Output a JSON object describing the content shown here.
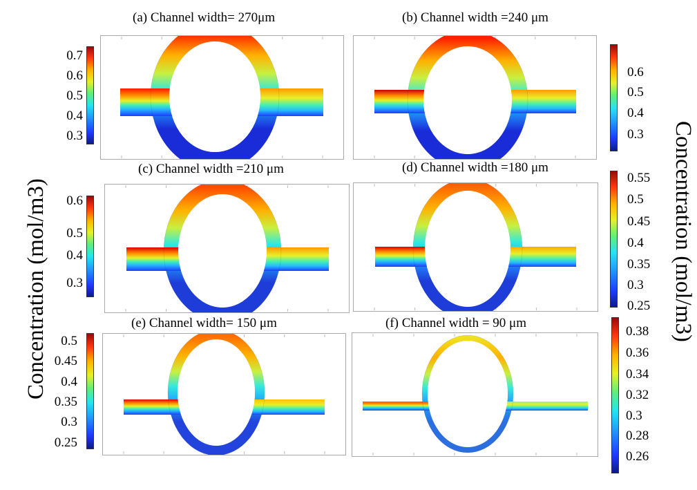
{
  "panels": [
    {
      "title": "(a) Channel width= 270μm",
      "cmin": 0.25,
      "cmax": 0.75,
      "ticks": [
        "0.7",
        "0.6",
        "0.5",
        "0.4",
        "0.3"
      ],
      "tick_values": [
        0.7,
        0.6,
        0.5,
        0.4,
        0.3
      ]
    },
    {
      "title": "(b) Channel width =240 μm",
      "cmin": 0.22,
      "cmax": 0.7,
      "ticks": [
        "0.6",
        "0.5",
        "0.4",
        "0.3"
      ],
      "tick_values": [
        0.6,
        0.5,
        0.4,
        0.3
      ]
    },
    {
      "title": "(c) Channel width =210 μm",
      "cmin": 0.25,
      "cmax": 0.62,
      "ticks": [
        "0.6",
        "0.5",
        "0.4",
        "0.3"
      ],
      "tick_values": [
        0.6,
        0.5,
        0.4,
        0.3
      ]
    },
    {
      "title": "(d) Channel width =180 μm",
      "cmin": 0.25,
      "cmax": 0.56,
      "ticks": [
        "0.55",
        "0.5",
        "0.45",
        "0.4",
        "0.35",
        "0.3",
        "0.25"
      ],
      "tick_values": [
        0.55,
        0.5,
        0.45,
        0.4,
        0.35,
        0.3,
        0.25
      ]
    },
    {
      "title": "(e) Channel width= 150 μm",
      "cmin": 0.23,
      "cmax": 0.52,
      "ticks": [
        "0.5",
        "0.45",
        "0.4",
        "0.35",
        "0.3",
        "0.25"
      ],
      "tick_values": [
        0.5,
        0.45,
        0.4,
        0.35,
        0.3,
        0.25
      ]
    },
    {
      "title": "(f) Channel width = 90 μm",
      "cmin": 0.25,
      "cmax": 0.39,
      "ticks": [
        "0.38",
        "0.36",
        "0.34",
        "0.32",
        "0.3",
        "0.28",
        "0.26"
      ],
      "tick_values": [
        0.38,
        0.36,
        0.34,
        0.32,
        0.3,
        0.28,
        0.26
      ]
    }
  ],
  "axis_label_left": "Concentration (mol/m3)",
  "axis_label_right": "Concentration (mol/m3)",
  "colormap": "jet"
}
